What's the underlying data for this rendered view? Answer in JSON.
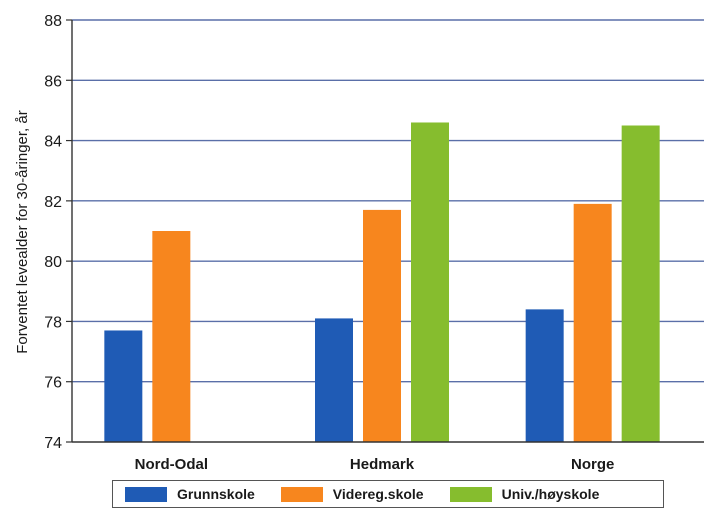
{
  "chart_data": {
    "type": "bar",
    "title": "",
    "xlabel": "",
    "ylabel": "Forventet levealder for 30-åringer, år",
    "ylim": [
      74,
      88
    ],
    "yticks": [
      74,
      76,
      78,
      80,
      82,
      84,
      86,
      88
    ],
    "categories": [
      "Nord-Odal",
      "Hedmark",
      "Norge"
    ],
    "grid": true,
    "legend_position": "bottom",
    "series": [
      {
        "name": "Grunnskole",
        "color": "#1f5bb5",
        "values": [
          77.7,
          78.1,
          78.4
        ]
      },
      {
        "name": "Videreg.skole",
        "color": "#f7861e",
        "values": [
          81.0,
          81.7,
          81.9
        ]
      },
      {
        "name": "Univ./høyskole",
        "color": "#86bd2e",
        "values": [
          null,
          84.6,
          84.5
        ]
      }
    ]
  }
}
